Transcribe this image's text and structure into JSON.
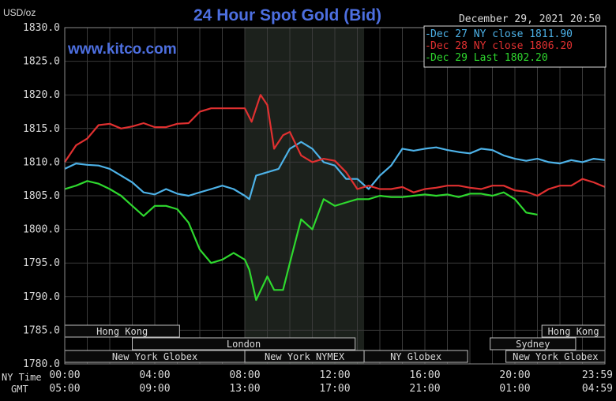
{
  "chart_data": {
    "type": "line",
    "title": "24 Hour Spot Gold (Bid)",
    "watermark": "www.kitco.com",
    "datetime": "December 29, 2021 20:50",
    "ylabel": "USD/oz",
    "ylim": [
      1780,
      1830
    ],
    "y_ticks": [
      "1830.0",
      "1825.0",
      "1820.0",
      "1815.0",
      "1810.0",
      "1805.0",
      "1800.0",
      "1795.0",
      "1790.0",
      "1785.0",
      "1780.0"
    ],
    "x_row_label": "NY Time",
    "x_ticks": [
      "00:00",
      "04:00",
      "08:00",
      "12:00",
      "16:00",
      "20:00",
      "23:59"
    ],
    "gmt_row_label": "GMT",
    "gmt_ticks": [
      "05:00",
      "09:00",
      "13:00",
      "17:00",
      "21:00",
      "01:00",
      "04:59"
    ],
    "xlim": [
      0,
      24
    ],
    "grid": true,
    "legend_position": "top-right",
    "colors": {
      "background": "#000000",
      "grid": "#3a3a3a",
      "text": "#d9d9d9",
      "title": "#4d6fe0",
      "shaded": "#1c211c",
      "session_fill": "#0a0a0a",
      "session_border": "#bfbfbf"
    },
    "series": [
      {
        "name": "Dec 27 NY close 1811.90",
        "color": "#4db2e8",
        "x": [
          0,
          0.5,
          1,
          1.5,
          2,
          2.5,
          3,
          3.5,
          4,
          4.5,
          5,
          5.5,
          6,
          6.5,
          7,
          7.5,
          8,
          8.2,
          8.5,
          9,
          9.5,
          10,
          10.5,
          11,
          11.5,
          12,
          12.5,
          13,
          13.5,
          14,
          14.5,
          15,
          15.5,
          16,
          16.5,
          17,
          17.5,
          18,
          18.5,
          19,
          19.5,
          20,
          20.5,
          21,
          21.5,
          22,
          22.5,
          23,
          23.5,
          24
        ],
        "y": [
          1809,
          1809.8,
          1809.6,
          1809.5,
          1809,
          1808,
          1807,
          1805.5,
          1805.2,
          1806,
          1805.3,
          1805,
          1805.5,
          1806,
          1806.5,
          1806,
          1805,
          1804.5,
          1808,
          1808.5,
          1809,
          1812,
          1813,
          1812,
          1810,
          1809.5,
          1807.5,
          1807.5,
          1806,
          1808,
          1809.5,
          1812,
          1811.7,
          1812,
          1812.2,
          1811.8,
          1811.5,
          1811.3,
          1812,
          1811.8,
          1811,
          1810.5,
          1810.2,
          1810.5,
          1810,
          1809.8,
          1810.3,
          1810,
          1810.5,
          1810.3
        ]
      },
      {
        "name": "Dec 28 NY close 1806.20",
        "color": "#e03030",
        "x": [
          0,
          0.5,
          1,
          1.5,
          2,
          2.5,
          3,
          3.5,
          4,
          4.5,
          5,
          5.5,
          6,
          6.5,
          7,
          7.5,
          8,
          8.3,
          8.7,
          9,
          9.3,
          9.7,
          10,
          10.5,
          11,
          11.5,
          12,
          12.5,
          13,
          13.5,
          14,
          14.5,
          15,
          15.5,
          16,
          16.5,
          17,
          17.5,
          18,
          18.5,
          19,
          19.5,
          20,
          20.5,
          21,
          21.5,
          22,
          22.5,
          23,
          23.5,
          24
        ],
        "y": [
          1810,
          1812.5,
          1813.5,
          1815.5,
          1815.7,
          1815,
          1815.3,
          1815.8,
          1815.2,
          1815.2,
          1815.7,
          1815.8,
          1817.5,
          1818,
          1818,
          1818,
          1818,
          1816,
          1820,
          1818.5,
          1812,
          1814,
          1814.5,
          1811,
          1810,
          1810.5,
          1810.2,
          1808.5,
          1806,
          1806.5,
          1806,
          1806,
          1806.3,
          1805.5,
          1806,
          1806.2,
          1806.5,
          1806.5,
          1806.2,
          1806,
          1806.5,
          1806.5,
          1805.8,
          1805.6,
          1805,
          1806,
          1806.5,
          1806.5,
          1807.5,
          1807,
          1806.3
        ]
      },
      {
        "name": "Dec 29 Last 1802.20",
        "color": "#2ed82e",
        "x": [
          0,
          0.5,
          1,
          1.5,
          2,
          2.5,
          3,
          3.5,
          4,
          4.5,
          5,
          5.5,
          6,
          6.5,
          7,
          7.5,
          8,
          8.2,
          8.5,
          9,
          9.3,
          9.7,
          10,
          10.5,
          11,
          11.5,
          12,
          12.5,
          13,
          13.5,
          14,
          14.5,
          15,
          15.5,
          16,
          16.5,
          17,
          17.5,
          18,
          18.5,
          19,
          19.5,
          20,
          20.5,
          21
        ],
        "y": [
          1806,
          1806.5,
          1807.2,
          1806.8,
          1806,
          1805,
          1803.5,
          1802,
          1803.5,
          1803.5,
          1803,
          1801,
          1797,
          1795,
          1795.5,
          1796.5,
          1795.5,
          1794,
          1789.5,
          1793,
          1791,
          1791,
          1795,
          1801.5,
          1800,
          1804.5,
          1803.5,
          1804,
          1804.5,
          1804.5,
          1805,
          1804.8,
          1804.8,
          1805,
          1805.2,
          1805,
          1805.2,
          1804.8,
          1805.3,
          1805.3,
          1805,
          1805.5,
          1804.5,
          1802.5,
          1802.2
        ]
      }
    ],
    "shaded_hours": [
      8,
      13.3
    ],
    "sessions_rows": [
      [
        {
          "label": "Hong Kong",
          "start": 0,
          "end": 5.1
        },
        {
          "label": "Hong Kong",
          "start": 21.2,
          "end": 24
        }
      ],
      [
        {
          "label": "London",
          "start": 3,
          "end": 12.9
        },
        {
          "label": "Sydney",
          "start": 18.9,
          "end": 22.7
        }
      ],
      [
        {
          "label": "New York Globex",
          "start": 0,
          "end": 8
        },
        {
          "label": "New York NYMEX",
          "start": 8,
          "end": 13.3
        },
        {
          "label": "NY Globex",
          "start": 13.3,
          "end": 17.9
        },
        {
          "label": "New York Globex",
          "start": 19.6,
          "end": 24
        }
      ]
    ]
  }
}
